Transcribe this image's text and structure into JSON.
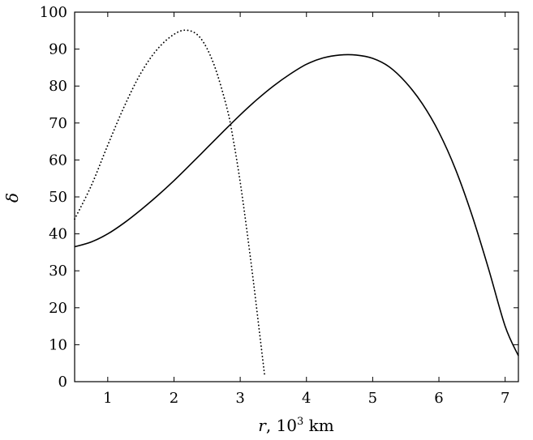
{
  "chart_data": {
    "type": "line",
    "xlabel_var": "r",
    "xlabel_sep": ", ",
    "xlabel_base": "10",
    "xlabel_exp": "3",
    "xlabel_unit": " km",
    "ylabel": "δ",
    "xlim": [
      0.5,
      7.2
    ],
    "ylim": [
      0,
      100
    ],
    "xticks": [
      1,
      2,
      3,
      4,
      5,
      6,
      7
    ],
    "yticks": [
      0,
      10,
      20,
      30,
      40,
      50,
      60,
      70,
      80,
      90,
      100
    ],
    "grid": false,
    "series": [
      {
        "style": "solid",
        "x": [
          0.5,
          0.75,
          1.0,
          1.25,
          1.5,
          1.75,
          2.0,
          2.25,
          2.5,
          2.75,
          3.0,
          3.25,
          3.5,
          3.75,
          4.0,
          4.25,
          4.5,
          4.75,
          5.0,
          5.25,
          5.5,
          5.75,
          6.0,
          6.25,
          6.5,
          6.75,
          7.0,
          7.2
        ],
        "y": [
          36.5,
          37.8,
          40.0,
          43.0,
          46.5,
          50.3,
          54.4,
          58.8,
          63.3,
          67.8,
          72.2,
          76.3,
          80.0,
          83.2,
          85.9,
          87.6,
          88.4,
          88.4,
          87.5,
          85.2,
          81.0,
          75.2,
          67.5,
          57.5,
          45.0,
          30.5,
          15.0,
          7.0
        ]
      },
      {
        "style": "dotted",
        "x": [
          0.5,
          0.75,
          1.0,
          1.25,
          1.5,
          1.75,
          2.0,
          2.2,
          2.4,
          2.6,
          2.8,
          2.9,
          3.0,
          3.1,
          3.2,
          3.3,
          3.37
        ],
        "y": [
          44.0,
          53.0,
          64.0,
          74.5,
          83.5,
          90.0,
          94.0,
          95.1,
          93.0,
          86.0,
          74.0,
          65.0,
          54.0,
          41.0,
          27.0,
          12.0,
          1.5
        ]
      }
    ]
  }
}
